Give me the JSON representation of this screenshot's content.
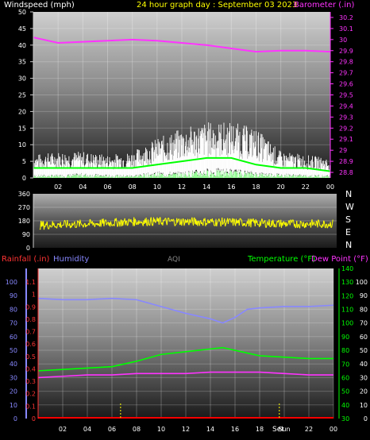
{
  "chart_data": [
    {
      "type": "line",
      "title": "24 hour graph day : September 03 2023",
      "ylabel_left": "Windspeed (mph)",
      "ylabel_right": "Barometer (.in)",
      "x_ticks": [
        "02",
        "04",
        "06",
        "08",
        "10",
        "12",
        "14",
        "16",
        "18",
        "20",
        "22",
        "00"
      ],
      "left_ticks": [
        "0",
        "5",
        "10",
        "15",
        "20",
        "25",
        "30",
        "35",
        "40",
        "45",
        "50"
      ],
      "right_ticks": [
        "28.8",
        "28.9",
        "29",
        "29.1",
        "29.2",
        "29.3",
        "29.4",
        "29.5",
        "29.6",
        "29.7",
        "29.8",
        "29.9",
        "30",
        "30.1",
        "30.2"
      ],
      "ylim_left": [
        0,
        50
      ],
      "ylim_right": [
        28.75,
        30.25
      ],
      "barometer": {
        "x": [
          0,
          2,
          4,
          6,
          8,
          10,
          12,
          14,
          16,
          18,
          20,
          22,
          24
        ],
        "y": [
          30.02,
          29.97,
          29.98,
          29.99,
          30.0,
          29.99,
          29.97,
          29.95,
          29.92,
          29.89,
          29.9,
          29.9,
          29.89
        ]
      },
      "wind_gust_envelope": {
        "x": [
          0,
          2,
          4,
          6,
          8,
          10,
          12,
          14,
          16,
          18,
          20,
          22,
          24
        ],
        "y": [
          7,
          8,
          8,
          7,
          8,
          12,
          15,
          17,
          17,
          15,
          8,
          7,
          6
        ]
      },
      "wind_avg": {
        "x": [
          0,
          2,
          4,
          6,
          8,
          10,
          12,
          14,
          16,
          18,
          20,
          22,
          24
        ],
        "y": [
          3,
          3,
          3,
          3,
          3,
          4,
          5,
          6,
          6,
          4,
          3,
          3,
          2
        ]
      },
      "wind_min": {
        "x": [
          0,
          2,
          4,
          6,
          8,
          10,
          12,
          14,
          16,
          18,
          20,
          22,
          24
        ],
        "y": [
          1,
          1,
          1.5,
          1,
          1,
          2,
          2,
          3,
          3,
          2,
          1.5,
          1,
          1
        ]
      },
      "colors": {
        "wind": "#ffffff",
        "avg": "#00ff00",
        "min": "#99ff99",
        "barometer": "#ff33ff"
      }
    },
    {
      "type": "scatter",
      "ylabel_right_letters": [
        "N",
        "W",
        "S",
        "E",
        "N"
      ],
      "left_ticks": [
        "0",
        "90",
        "180",
        "270",
        "360"
      ],
      "ylim": [
        0,
        360
      ],
      "direction_mean": {
        "x": [
          0,
          4,
          8,
          12,
          16,
          20,
          24
        ],
        "y": [
          150,
          160,
          175,
          175,
          170,
          160,
          160
        ]
      },
      "color": "#ffff00"
    },
    {
      "type": "line",
      "labels": {
        "rain": "Rainfall (.in)",
        "humidity": "Humidity",
        "aqi": "AQI",
        "temperature": "Temperature (°F)",
        "dewpoint": "Dew Point (°F)"
      },
      "humidity_ticks": [
        "0",
        "10",
        "20",
        "30",
        "40",
        "50",
        "60",
        "70",
        "80",
        "90",
        "100"
      ],
      "rain_ticks": [
        "0",
        "0.1",
        "0.2",
        "0.3",
        "0.4",
        "0.5",
        "0.6",
        "0.7",
        "0.8",
        "0.9",
        "1",
        "1.1"
      ],
      "temp_ticks": [
        "30",
        "40",
        "50",
        "60",
        "70",
        "80",
        "90",
        "100",
        "110",
        "120",
        "130",
        "140"
      ],
      "dew_ticks": [
        "0",
        "10",
        "20",
        "30",
        "40",
        "50",
        "60",
        "70",
        "80",
        "90",
        "100"
      ],
      "x_ticks": [
        "02",
        "04",
        "06",
        "08",
        "10",
        "12",
        "14",
        "16",
        "18",
        "Sun",
        "22",
        "00"
      ],
      "x_marker_label": "Set",
      "ylim_humidity": [
        0,
        100
      ],
      "ylim_temp": [
        30,
        140
      ],
      "humidity": {
        "x": [
          0,
          2,
          4,
          6,
          8,
          10,
          12,
          14,
          15,
          16,
          17,
          18,
          20,
          22,
          24
        ],
        "y": [
          88,
          87,
          87,
          88,
          87,
          82,
          77,
          73,
          70,
          74,
          80,
          81,
          82,
          82,
          83
        ]
      },
      "temperature": {
        "x": [
          0,
          2,
          4,
          6,
          8,
          10,
          12,
          14,
          15,
          16,
          18,
          20,
          22,
          24
        ],
        "y": [
          65,
          66,
          67,
          68,
          72,
          77,
          79,
          81,
          82,
          80,
          76,
          75,
          74,
          74
        ]
      },
      "dewpoint": {
        "x": [
          0,
          2,
          4,
          6,
          8,
          10,
          12,
          14,
          16,
          18,
          20,
          22,
          24
        ],
        "y": [
          60,
          61,
          62,
          62,
          63,
          63,
          63,
          64,
          64,
          64,
          63,
          62,
          62
        ]
      },
      "rainfall": {
        "x": [
          0,
          24
        ],
        "y": [
          0,
          0
        ]
      },
      "sunrise_hour": 6.7,
      "sunset_hour": 19.6,
      "colors": {
        "humidity": "#8888ff",
        "temperature": "#00ff00",
        "dewpoint": "#ff33ff",
        "rain": "#ff0000",
        "aqi": "#888888",
        "markers": "#ffff00"
      }
    }
  ]
}
